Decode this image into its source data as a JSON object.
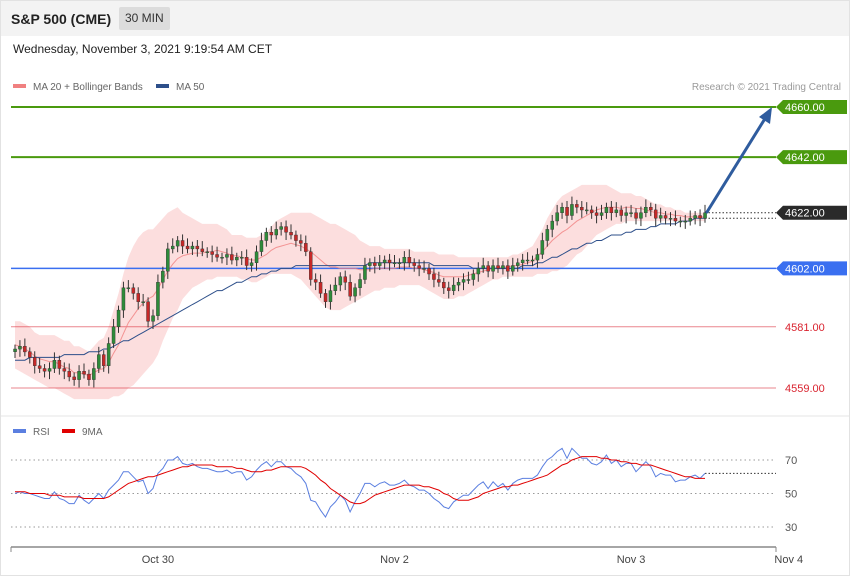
{
  "header": {
    "instrument": "S&P 500 (CME)",
    "timeframe": "30 MIN",
    "timestamp": "Wednesday, November 3, 2021 9:19:54 AM CET",
    "credit": "Research © 2021 Trading Central"
  },
  "colors": {
    "resistance": "#4a9a0e",
    "pivot": "#3a6ff0",
    "support": "#d9232f",
    "price_tag": "#2a2a2a",
    "bollinger": "#fbd3d3",
    "ma20": "#f08080",
    "ma50": "#2d4f8a",
    "arrow": "#2f5c9e",
    "rsi": "#5b7fe0",
    "rsi_ma": "#e00000"
  },
  "chart_data": [
    {
      "type": "candlestick",
      "legend": [
        {
          "name": "MA 20 + Bollinger Bands",
          "color": "#f08080"
        },
        {
          "name": "MA 50",
          "color": "#2d4f8a"
        }
      ],
      "ylim": [
        4545,
        4668
      ],
      "x_ticks": [
        {
          "label": "Oct 30",
          "bar": 29
        },
        {
          "label": "Nov 2",
          "bar": 77
        },
        {
          "label": "Nov 3",
          "bar": 125
        },
        {
          "label": "Nov 4",
          "bar": 157
        }
      ],
      "levels": [
        {
          "label": "4660.00",
          "value": 4660,
          "kind": "resistance"
        },
        {
          "label": "4642.00",
          "value": 4642,
          "kind": "resistance"
        },
        {
          "label": "4622.00",
          "value": 4622,
          "kind": "last"
        },
        {
          "label": "4602.00",
          "value": 4602,
          "kind": "pivot"
        },
        {
          "label": "4581.00",
          "value": 4581,
          "kind": "support"
        },
        {
          "label": "4559.00",
          "value": 4559,
          "kind": "support"
        }
      ],
      "close": [
        4573,
        4574,
        4572,
        4570,
        4567,
        4566,
        4565,
        4566,
        4569,
        4566,
        4565,
        4563,
        4562,
        4565,
        4564,
        4562,
        4566,
        4571,
        4567,
        4575,
        4581,
        4587,
        4595,
        4595,
        4593,
        4590,
        4590,
        4583,
        4585,
        4597,
        4601,
        4609,
        4610,
        4612,
        4610,
        4609,
        4610,
        4609,
        4608,
        4608,
        4607,
        4606,
        4606,
        4607,
        4605,
        4606,
        4606,
        4603,
        4604,
        4608,
        4612,
        4615,
        4614,
        4616,
        4617,
        4615,
        4614,
        4612,
        4611,
        4608,
        4598,
        4597,
        4593,
        4590,
        4594,
        4596,
        4599,
        4597,
        4592,
        4595,
        4598,
        4603,
        4604,
        4603,
        4604,
        4605,
        4604,
        4604,
        4604,
        4606,
        4604,
        4603,
        4602,
        4602,
        4600,
        4598,
        4597,
        4595,
        4594,
        4596,
        4597,
        4598,
        4598,
        4600,
        4602,
        4603,
        4601,
        4603,
        4602,
        4603,
        4601,
        4603,
        4604,
        4605,
        4605,
        4605,
        4607,
        4612,
        4616,
        4619,
        4622,
        4624,
        4621,
        4625,
        4624,
        4623,
        4623,
        4622,
        4621,
        4622,
        4624,
        4622,
        4623,
        4621,
        4622,
        4622,
        4620,
        4622,
        4624,
        4623,
        4620,
        4621,
        4620,
        4620,
        4619,
        4619,
        4619,
        4620,
        4621,
        4620,
        4622
      ],
      "bollinger_upper": [
        4583,
        4583,
        4582,
        4581,
        4579,
        4578,
        4578,
        4578,
        4578,
        4577,
        4576,
        4576,
        4574,
        4574,
        4573,
        4572,
        4574,
        4576,
        4577,
        4581,
        4587,
        4593,
        4600,
        4606,
        4610,
        4613,
        4615,
        4616,
        4616,
        4618,
        4620,
        4622,
        4623,
        4624,
        4622,
        4621,
        4620,
        4619,
        4618,
        4618,
        4618,
        4618,
        4617,
        4616,
        4614,
        4614,
        4614,
        4613,
        4613,
        4613,
        4614,
        4615,
        4617,
        4619,
        4620,
        4621,
        4622,
        4622,
        4622,
        4622,
        4622,
        4621,
        4620,
        4619,
        4618,
        4618,
        4617,
        4616,
        4615,
        4614,
        4612,
        4611,
        4610,
        4610,
        4610,
        4609,
        4609,
        4609,
        4609,
        4609,
        4609,
        4608,
        4608,
        4608,
        4608,
        4608,
        4607,
        4607,
        4607,
        4607,
        4606,
        4606,
        4606,
        4606,
        4606,
        4606,
        4606,
        4606,
        4606,
        4606,
        4606,
        4607,
        4607,
        4608,
        4609,
        4610,
        4613,
        4616,
        4620,
        4623,
        4626,
        4628,
        4629,
        4630,
        4631,
        4632,
        4632,
        4632,
        4632,
        4632,
        4632,
        4631,
        4630,
        4629,
        4629,
        4629,
        4628,
        4628,
        4627,
        4626,
        4625,
        4625,
        4624,
        4624,
        4623,
        4623,
        4622,
        4622,
        4622,
        4622,
        4622
      ],
      "bollinger_lower": [
        4566,
        4565,
        4564,
        4563,
        4562,
        4561,
        4560,
        4559,
        4559,
        4558,
        4557,
        4556,
        4555,
        4555,
        4555,
        4555,
        4555,
        4555,
        4555,
        4555,
        4556,
        4556,
        4557,
        4559,
        4560,
        4562,
        4564,
        4566,
        4568,
        4571,
        4576,
        4580,
        4584,
        4587,
        4591,
        4593,
        4595,
        4596,
        4597,
        4598,
        4598,
        4599,
        4599,
        4599,
        4599,
        4599,
        4598,
        4598,
        4597,
        4597,
        4598,
        4599,
        4600,
        4600,
        4600,
        4600,
        4600,
        4599,
        4598,
        4596,
        4594,
        4592,
        4590,
        4588,
        4587,
        4587,
        4587,
        4588,
        4589,
        4590,
        4591,
        4592,
        4593,
        4594,
        4594,
        4595,
        4595,
        4595,
        4596,
        4596,
        4596,
        4596,
        4596,
        4595,
        4594,
        4593,
        4592,
        4591,
        4591,
        4591,
        4592,
        4592,
        4593,
        4594,
        4595,
        4596,
        4597,
        4598,
        4598,
        4599,
        4599,
        4599,
        4599,
        4599,
        4599,
        4599,
        4600,
        4600,
        4600,
        4601,
        4601,
        4602,
        4603,
        4605,
        4607,
        4608,
        4610,
        4612,
        4614,
        4615,
        4616,
        4617,
        4618,
        4618,
        4619,
        4619,
        4619,
        4619,
        4619,
        4619,
        4619,
        4619,
        4619,
        4619,
        4619,
        4619,
        4619,
        4619,
        4619,
        4619,
        4619
      ],
      "ma50": [
        4569,
        4569,
        4569,
        4570,
        4570,
        4570,
        4570,
        4570,
        4570,
        4570,
        4571,
        4571,
        4571,
        4571,
        4571,
        4572,
        4572,
        4572,
        4573,
        4573,
        4574,
        4575,
        4576,
        4576,
        4577,
        4578,
        4579,
        4580,
        4581,
        4582,
        4583,
        4584,
        4585,
        4586,
        4587,
        4588,
        4589,
        4590,
        4591,
        4592,
        4593,
        4594,
        4594,
        4595,
        4596,
        4597,
        4597,
        4598,
        4599,
        4599,
        4600,
        4600,
        4601,
        4601,
        4602,
        4602,
        4602,
        4603,
        4603,
        4603,
        4603,
        4603,
        4603,
        4603,
        4603,
        4603,
        4603,
        4603,
        4603,
        4603,
        4603,
        4603,
        4604,
        4604,
        4604,
        4604,
        4604,
        4604,
        4604,
        4604,
        4604,
        4604,
        4604,
        4604,
        4604,
        4603,
        4603,
        4603,
        4603,
        4603,
        4603,
        4603,
        4603,
        4602,
        4602,
        4602,
        4602,
        4602,
        4602,
        4602,
        4602,
        4602,
        4602,
        4603,
        4603,
        4603,
        4604,
        4604,
        4605,
        4606,
        4606,
        4607,
        4608,
        4609,
        4609,
        4610,
        4611,
        4611,
        4612,
        4612,
        4613,
        4614,
        4614,
        4614,
        4615,
        4615,
        4616,
        4616,
        4616,
        4617,
        4617,
        4618,
        4618,
        4618,
        4618,
        4619,
        4619,
        4619,
        4620,
        4620,
        4620
      ]
    },
    {
      "type": "line",
      "legend": [
        {
          "name": "RSI",
          "color": "#5b7fe0"
        },
        {
          "name": "9MA",
          "color": "#e00000"
        }
      ],
      "ylim": [
        20,
        80
      ],
      "y_ticks": [
        70,
        50,
        30
      ],
      "series": [
        {
          "name": "RSI",
          "values": [
            50,
            51,
            50,
            50,
            49,
            48,
            47,
            47,
            51,
            47,
            46,
            44,
            44,
            49,
            46,
            44,
            47,
            50,
            47,
            52,
            55,
            58,
            63,
            63,
            60,
            57,
            58,
            50,
            53,
            62,
            65,
            70,
            70,
            72,
            68,
            67,
            68,
            66,
            65,
            65,
            64,
            63,
            63,
            64,
            62,
            63,
            63,
            58,
            60,
            64,
            67,
            69,
            66,
            69,
            69,
            66,
            65,
            62,
            60,
            56,
            46,
            45,
            40,
            36,
            42,
            45,
            49,
            46,
            39,
            45,
            50,
            56,
            56,
            54,
            56,
            57,
            55,
            55,
            56,
            58,
            55,
            54,
            52,
            52,
            50,
            47,
            45,
            42,
            41,
            45,
            47,
            49,
            49,
            52,
            55,
            57,
            53,
            57,
            54,
            56,
            52,
            56,
            58,
            59,
            59,
            59,
            61,
            66,
            70,
            72,
            75,
            77,
            71,
            77,
            74,
            71,
            71,
            68,
            67,
            69,
            73,
            68,
            70,
            66,
            68,
            68,
            63,
            66,
            69,
            66,
            60,
            62,
            61,
            61,
            57,
            58,
            58,
            60,
            61,
            59,
            62
          ]
        },
        {
          "name": "9MA",
          "values": [
            51,
            51,
            51,
            50,
            50,
            50,
            50,
            49,
            49,
            49,
            48,
            48,
            48,
            48,
            47,
            47,
            47,
            47,
            47,
            48,
            50,
            52,
            54,
            56,
            57,
            58,
            59,
            60,
            60,
            61,
            62,
            63,
            64,
            65,
            66,
            66,
            67,
            67,
            67,
            67,
            67,
            66,
            66,
            66,
            66,
            65,
            65,
            64,
            63,
            63,
            63,
            64,
            64,
            65,
            66,
            66,
            66,
            66,
            66,
            65,
            63,
            61,
            58,
            56,
            53,
            51,
            49,
            47,
            45,
            44,
            44,
            45,
            47,
            49,
            50,
            51,
            52,
            53,
            54,
            55,
            55,
            55,
            55,
            54,
            54,
            53,
            52,
            50,
            49,
            47,
            46,
            46,
            46,
            47,
            48,
            50,
            51,
            52,
            53,
            54,
            54,
            55,
            55,
            56,
            57,
            58,
            59,
            60,
            61,
            63,
            65,
            67,
            68,
            70,
            71,
            72,
            72,
            72,
            72,
            71,
            71,
            70,
            70,
            69,
            69,
            68,
            68,
            67,
            67,
            67,
            66,
            65,
            64,
            63,
            62,
            61,
            60,
            60,
            59,
            59,
            59
          ]
        }
      ]
    }
  ]
}
